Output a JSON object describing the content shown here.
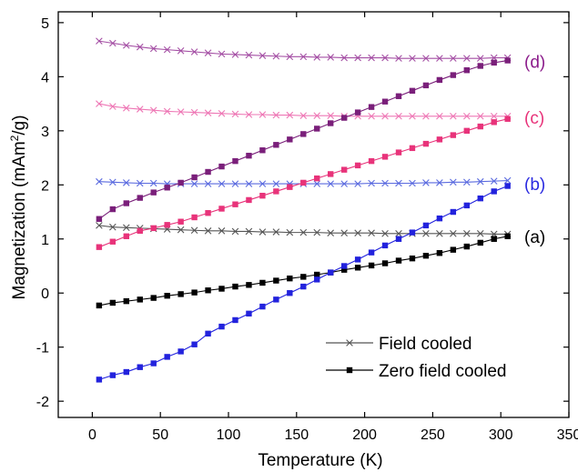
{
  "chart_data": {
    "type": "line",
    "xlabel": "Temperature (K)",
    "ylabel": {
      "prefix": "Magnetization (mAm",
      "sup": "2",
      "suffix": "/g)"
    },
    "xlim": [
      -25,
      350
    ],
    "ylim": [
      -2.3,
      5.2
    ],
    "xticks": [
      0,
      50,
      100,
      150,
      200,
      250,
      300,
      350
    ],
    "yticks": [
      -2,
      -1,
      0,
      1,
      2,
      3,
      4,
      5
    ],
    "grid": false,
    "legend": {
      "placement": "bottom-right",
      "entries": [
        {
          "label": "Field cooled",
          "marker": "x",
          "color": "#555555"
        },
        {
          "label": "Zero field cooled",
          "marker": "square",
          "color": "#000000"
        }
      ]
    },
    "annotations": [
      {
        "text": "(a)",
        "color": "#000000",
        "y": 1.05
      },
      {
        "text": "(b)",
        "color": "#2a2ae0",
        "y": 2.02
      },
      {
        "text": "(c)",
        "color": "#e8337a",
        "y": 3.25
      },
      {
        "text": "(d)",
        "color": "#8b1c8b",
        "y": 4.28
      }
    ],
    "x": [
      5,
      15,
      25,
      35,
      45,
      55,
      65,
      75,
      85,
      95,
      105,
      115,
      125,
      135,
      145,
      155,
      165,
      175,
      185,
      195,
      205,
      215,
      225,
      235,
      245,
      255,
      265,
      275,
      285,
      295,
      305
    ],
    "series": [
      {
        "sample": "a",
        "mode": "field_cooled",
        "color": "#555555",
        "marker": "x",
        "values": [
          1.25,
          1.22,
          1.21,
          1.2,
          1.19,
          1.18,
          1.17,
          1.16,
          1.15,
          1.15,
          1.14,
          1.14,
          1.13,
          1.13,
          1.12,
          1.12,
          1.12,
          1.11,
          1.11,
          1.11,
          1.11,
          1.1,
          1.1,
          1.1,
          1.1,
          1.1,
          1.1,
          1.1,
          1.1,
          1.09,
          1.09
        ]
      },
      {
        "sample": "a",
        "mode": "zero_field_cooled",
        "color": "#000000",
        "marker": "square",
        "values": [
          -0.23,
          -0.18,
          -0.15,
          -0.12,
          -0.09,
          -0.05,
          -0.02,
          0.01,
          0.05,
          0.08,
          0.12,
          0.15,
          0.19,
          0.23,
          0.27,
          0.3,
          0.34,
          0.38,
          0.43,
          0.47,
          0.51,
          0.55,
          0.6,
          0.64,
          0.69,
          0.74,
          0.8,
          0.86,
          0.93,
          1.0,
          1.05
        ]
      },
      {
        "sample": "b",
        "mode": "field_cooled",
        "color": "#5a6adf",
        "marker": "x",
        "values": [
          2.06,
          2.05,
          2.04,
          2.03,
          2.03,
          2.02,
          2.02,
          2.02,
          2.02,
          2.02,
          2.02,
          2.02,
          2.02,
          2.02,
          2.02,
          2.02,
          2.02,
          2.02,
          2.02,
          2.02,
          2.03,
          2.03,
          2.03,
          2.03,
          2.04,
          2.04,
          2.05,
          2.05,
          2.06,
          2.07,
          2.08
        ]
      },
      {
        "sample": "b",
        "mode": "zero_field_cooled",
        "color": "#2222dd",
        "marker": "square",
        "values": [
          -1.6,
          -1.52,
          -1.46,
          -1.37,
          -1.3,
          -1.18,
          -1.08,
          -0.95,
          -0.75,
          -0.62,
          -0.5,
          -0.38,
          -0.25,
          -0.12,
          0.0,
          0.12,
          0.25,
          0.38,
          0.5,
          0.62,
          0.75,
          0.88,
          1.0,
          1.12,
          1.25,
          1.38,
          1.5,
          1.62,
          1.75,
          1.88,
          1.98
        ]
      },
      {
        "sample": "c",
        "mode": "field_cooled",
        "color": "#ee77b5",
        "marker": "x",
        "values": [
          3.5,
          3.45,
          3.42,
          3.4,
          3.38,
          3.36,
          3.35,
          3.34,
          3.33,
          3.32,
          3.31,
          3.3,
          3.3,
          3.29,
          3.29,
          3.28,
          3.28,
          3.28,
          3.27,
          3.27,
          3.27,
          3.27,
          3.27,
          3.27,
          3.27,
          3.27,
          3.27,
          3.27,
          3.27,
          3.27,
          3.27
        ]
      },
      {
        "sample": "c",
        "mode": "zero_field_cooled",
        "color": "#e8337a",
        "marker": "square",
        "values": [
          0.85,
          0.95,
          1.05,
          1.15,
          1.2,
          1.26,
          1.32,
          1.4,
          1.48,
          1.56,
          1.64,
          1.72,
          1.8,
          1.88,
          1.96,
          2.04,
          2.12,
          2.2,
          2.28,
          2.36,
          2.44,
          2.52,
          2.6,
          2.68,
          2.76,
          2.84,
          2.92,
          3.0,
          3.08,
          3.16,
          3.22
        ]
      },
      {
        "sample": "d",
        "mode": "field_cooled",
        "color": "#a44fa4",
        "marker": "x",
        "values": [
          4.66,
          4.62,
          4.58,
          4.55,
          4.52,
          4.5,
          4.48,
          4.46,
          4.44,
          4.42,
          4.41,
          4.4,
          4.39,
          4.38,
          4.37,
          4.37,
          4.36,
          4.36,
          4.35,
          4.35,
          4.35,
          4.35,
          4.34,
          4.34,
          4.34,
          4.34,
          4.34,
          4.34,
          4.34,
          4.35,
          4.35
        ]
      },
      {
        "sample": "d",
        "mode": "zero_field_cooled",
        "color": "#7a1f7a",
        "marker": "square",
        "values": [
          1.37,
          1.55,
          1.66,
          1.76,
          1.86,
          1.95,
          2.04,
          2.14,
          2.24,
          2.34,
          2.44,
          2.54,
          2.64,
          2.74,
          2.84,
          2.94,
          3.04,
          3.14,
          3.24,
          3.34,
          3.44,
          3.54,
          3.64,
          3.74,
          3.84,
          3.94,
          4.03,
          4.12,
          4.2,
          4.26,
          4.3
        ]
      }
    ]
  }
}
